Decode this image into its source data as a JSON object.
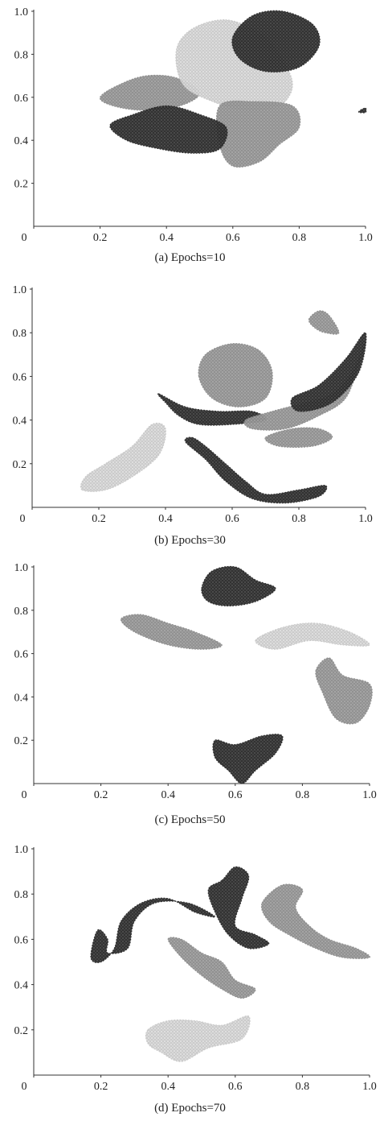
{
  "chart_data": [
    {
      "type": "scatter",
      "caption": "(a) Epochs=10",
      "xlim": [
        0,
        1.0
      ],
      "ylim": [
        0,
        1.0
      ],
      "xticks": [
        "0",
        "0.2",
        "0.4",
        "0.6",
        "0.8",
        "1.0"
      ],
      "yticks": [
        "0.2",
        "0.4",
        "0.6",
        "0.8",
        "1.0"
      ],
      "clusters": [
        {
          "shade": "medium",
          "points": [
            [
              0.2,
              0.6
            ],
            [
              0.26,
              0.66
            ],
            [
              0.34,
              0.7
            ],
            [
              0.43,
              0.69
            ],
            [
              0.5,
              0.62
            ],
            [
              0.44,
              0.56
            ],
            [
              0.33,
              0.54
            ],
            [
              0.24,
              0.56
            ]
          ]
        },
        {
          "shade": "light",
          "points": [
            [
              0.43,
              0.82
            ],
            [
              0.48,
              0.92
            ],
            [
              0.58,
              0.96
            ],
            [
              0.68,
              0.9
            ],
            [
              0.74,
              0.8
            ],
            [
              0.78,
              0.66
            ],
            [
              0.74,
              0.56
            ],
            [
              0.64,
              0.54
            ],
            [
              0.54,
              0.58
            ],
            [
              0.45,
              0.66
            ]
          ]
        },
        {
          "shade": "dark",
          "points": [
            [
              0.6,
              0.88
            ],
            [
              0.66,
              0.98
            ],
            [
              0.75,
              1.0
            ],
            [
              0.84,
              0.94
            ],
            [
              0.86,
              0.84
            ],
            [
              0.8,
              0.74
            ],
            [
              0.7,
              0.72
            ],
            [
              0.62,
              0.78
            ]
          ]
        },
        {
          "shade": "medium",
          "points": [
            [
              0.56,
              0.56
            ],
            [
              0.66,
              0.58
            ],
            [
              0.78,
              0.56
            ],
            [
              0.8,
              0.46
            ],
            [
              0.74,
              0.38
            ],
            [
              0.68,
              0.3
            ],
            [
              0.6,
              0.28
            ],
            [
              0.56,
              0.38
            ]
          ]
        },
        {
          "shade": "dark",
          "points": [
            [
              0.23,
              0.47
            ],
            [
              0.3,
              0.52
            ],
            [
              0.4,
              0.56
            ],
            [
              0.5,
              0.52
            ],
            [
              0.58,
              0.46
            ],
            [
              0.56,
              0.36
            ],
            [
              0.48,
              0.34
            ],
            [
              0.38,
              0.36
            ],
            [
              0.28,
              0.4
            ]
          ]
        },
        {
          "shade": "dark",
          "points": [
            [
              0.985,
              0.54
            ],
            [
              1.0,
              0.55
            ],
            [
              1.0,
              0.53
            ],
            [
              0.98,
              0.53
            ]
          ]
        }
      ]
    },
    {
      "type": "scatter",
      "caption": "(b) Epochs=30",
      "xlim": [
        0,
        1.0
      ],
      "ylim": [
        0,
        1.0
      ],
      "xticks": [
        "0",
        "0.2",
        "0.4",
        "0.6",
        "0.8",
        "1.0"
      ],
      "yticks": [
        "0.2",
        "0.4",
        "0.6",
        "0.8",
        "1.0"
      ],
      "clusters": [
        {
          "shade": "light",
          "points": [
            [
              0.15,
              0.08
            ],
            [
              0.16,
              0.14
            ],
            [
              0.22,
              0.2
            ],
            [
              0.3,
              0.28
            ],
            [
              0.36,
              0.38
            ],
            [
              0.4,
              0.36
            ],
            [
              0.38,
              0.24
            ],
            [
              0.3,
              0.14
            ],
            [
              0.22,
              0.08
            ]
          ]
        },
        {
          "shade": "medium",
          "points": [
            [
              0.5,
              0.6
            ],
            [
              0.52,
              0.7
            ],
            [
              0.6,
              0.75
            ],
            [
              0.68,
              0.72
            ],
            [
              0.72,
              0.62
            ],
            [
              0.7,
              0.5
            ],
            [
              0.62,
              0.46
            ],
            [
              0.54,
              0.5
            ]
          ]
        },
        {
          "shade": "dark",
          "points": [
            [
              0.38,
              0.52
            ],
            [
              0.46,
              0.46
            ],
            [
              0.56,
              0.44
            ],
            [
              0.66,
              0.44
            ],
            [
              0.7,
              0.4
            ],
            [
              0.6,
              0.38
            ],
            [
              0.5,
              0.38
            ],
            [
              0.44,
              0.42
            ],
            [
              0.4,
              0.48
            ]
          ]
        },
        {
          "shade": "dark",
          "points": [
            [
              0.48,
              0.32
            ],
            [
              0.52,
              0.28
            ],
            [
              0.58,
              0.2
            ],
            [
              0.64,
              0.12
            ],
            [
              0.7,
              0.06
            ],
            [
              0.8,
              0.08
            ],
            [
              0.88,
              0.1
            ],
            [
              0.86,
              0.05
            ],
            [
              0.76,
              0.02
            ],
            [
              0.66,
              0.04
            ],
            [
              0.58,
              0.12
            ],
            [
              0.52,
              0.22
            ],
            [
              0.46,
              0.3
            ]
          ]
        },
        {
          "shade": "medium",
          "points": [
            [
              0.64,
              0.4
            ],
            [
              0.72,
              0.44
            ],
            [
              0.82,
              0.48
            ],
            [
              0.9,
              0.52
            ],
            [
              0.96,
              0.62
            ],
            [
              1.0,
              0.76
            ],
            [
              0.98,
              0.66
            ],
            [
              0.94,
              0.5
            ],
            [
              0.86,
              0.42
            ],
            [
              0.76,
              0.36
            ],
            [
              0.66,
              0.36
            ]
          ]
        },
        {
          "shade": "dark",
          "points": [
            [
              0.78,
              0.5
            ],
            [
              0.86,
              0.56
            ],
            [
              0.94,
              0.68
            ],
            [
              1.0,
              0.8
            ],
            [
              0.98,
              0.62
            ],
            [
              0.9,
              0.48
            ],
            [
              0.8,
              0.44
            ]
          ]
        },
        {
          "shade": "medium",
          "points": [
            [
              0.7,
              0.32
            ],
            [
              0.78,
              0.36
            ],
            [
              0.86,
              0.36
            ],
            [
              0.9,
              0.32
            ],
            [
              0.84,
              0.28
            ],
            [
              0.74,
              0.28
            ]
          ]
        },
        {
          "shade": "medium",
          "points": [
            [
              0.83,
              0.86
            ],
            [
              0.86,
              0.9
            ],
            [
              0.89,
              0.88
            ],
            [
              0.92,
              0.8
            ],
            [
              0.88,
              0.8
            ],
            [
              0.85,
              0.82
            ]
          ]
        }
      ]
    },
    {
      "type": "scatter",
      "caption": "(c) Epochs=50",
      "xlim": [
        0,
        1.0
      ],
      "ylim": [
        0,
        1.0
      ],
      "xticks": [
        "0",
        "0.2",
        "0.4",
        "0.6",
        "0.8",
        "1.0"
      ],
      "yticks": [
        "0.2",
        "0.4",
        "0.6",
        "0.8",
        "1.0"
      ],
      "clusters": [
        {
          "shade": "dark",
          "points": [
            [
              0.5,
              0.9
            ],
            [
              0.53,
              0.98
            ],
            [
              0.6,
              1.0
            ],
            [
              0.66,
              0.94
            ],
            [
              0.72,
              0.9
            ],
            [
              0.66,
              0.84
            ],
            [
              0.58,
              0.82
            ],
            [
              0.52,
              0.84
            ]
          ]
        },
        {
          "shade": "medium",
          "points": [
            [
              0.26,
              0.76
            ],
            [
              0.32,
              0.78
            ],
            [
              0.4,
              0.74
            ],
            [
              0.48,
              0.7
            ],
            [
              0.56,
              0.64
            ],
            [
              0.5,
              0.62
            ],
            [
              0.4,
              0.64
            ],
            [
              0.3,
              0.7
            ]
          ]
        },
        {
          "shade": "light",
          "points": [
            [
              0.66,
              0.66
            ],
            [
              0.74,
              0.72
            ],
            [
              0.84,
              0.74
            ],
            [
              0.94,
              0.7
            ],
            [
              1.0,
              0.64
            ],
            [
              0.92,
              0.64
            ],
            [
              0.82,
              0.66
            ],
            [
              0.72,
              0.62
            ]
          ]
        },
        {
          "shade": "medium",
          "points": [
            [
              0.84,
              0.52
            ],
            [
              0.88,
              0.58
            ],
            [
              0.92,
              0.5
            ],
            [
              1.0,
              0.46
            ],
            [
              1.0,
              0.36
            ],
            [
              0.96,
              0.28
            ],
            [
              0.9,
              0.3
            ],
            [
              0.86,
              0.42
            ]
          ]
        },
        {
          "shade": "dark",
          "points": [
            [
              0.54,
              0.2
            ],
            [
              0.6,
              0.18
            ],
            [
              0.68,
              0.22
            ],
            [
              0.74,
              0.22
            ],
            [
              0.72,
              0.14
            ],
            [
              0.66,
              0.06
            ],
            [
              0.62,
              0.0
            ],
            [
              0.58,
              0.06
            ],
            [
              0.54,
              0.12
            ]
          ]
        }
      ]
    },
    {
      "type": "scatter",
      "caption": "(d) Epochs=70",
      "xlim": [
        0,
        1.0
      ],
      "ylim": [
        0,
        1.0
      ],
      "xticks": [
        "0",
        "0.2",
        "0.4",
        "0.6",
        "0.8",
        "1.0"
      ],
      "yticks": [
        "0.2",
        "0.4",
        "0.6",
        "0.8",
        "1.0"
      ],
      "clusters": [
        {
          "shade": "dark",
          "points": [
            [
              0.17,
              0.52
            ],
            [
              0.19,
              0.64
            ],
            [
              0.22,
              0.6
            ],
            [
              0.22,
              0.54
            ],
            [
              0.28,
              0.56
            ],
            [
              0.3,
              0.68
            ],
            [
              0.36,
              0.76
            ],
            [
              0.46,
              0.76
            ],
            [
              0.54,
              0.7
            ],
            [
              0.48,
              0.72
            ],
            [
              0.4,
              0.78
            ],
            [
              0.32,
              0.76
            ],
            [
              0.26,
              0.68
            ],
            [
              0.24,
              0.56
            ],
            [
              0.2,
              0.5
            ]
          ]
        },
        {
          "shade": "dark",
          "points": [
            [
              0.56,
              0.86
            ],
            [
              0.6,
              0.92
            ],
            [
              0.64,
              0.88
            ],
            [
              0.62,
              0.78
            ],
            [
              0.6,
              0.66
            ],
            [
              0.66,
              0.62
            ],
            [
              0.7,
              0.58
            ],
            [
              0.64,
              0.56
            ],
            [
              0.58,
              0.62
            ],
            [
              0.54,
              0.72
            ],
            [
              0.52,
              0.82
            ]
          ]
        },
        {
          "shade": "medium",
          "points": [
            [
              0.68,
              0.76
            ],
            [
              0.74,
              0.84
            ],
            [
              0.8,
              0.82
            ],
            [
              0.78,
              0.74
            ],
            [
              0.82,
              0.66
            ],
            [
              0.88,
              0.6
            ],
            [
              0.96,
              0.56
            ],
            [
              1.0,
              0.52
            ],
            [
              0.92,
              0.52
            ],
            [
              0.84,
              0.56
            ],
            [
              0.76,
              0.62
            ],
            [
              0.7,
              0.68
            ]
          ]
        },
        {
          "shade": "medium",
          "points": [
            [
              0.4,
              0.6
            ],
            [
              0.44,
              0.6
            ],
            [
              0.5,
              0.54
            ],
            [
              0.56,
              0.5
            ],
            [
              0.6,
              0.42
            ],
            [
              0.66,
              0.38
            ],
            [
              0.62,
              0.34
            ],
            [
              0.56,
              0.38
            ],
            [
              0.5,
              0.44
            ],
            [
              0.44,
              0.52
            ]
          ]
        },
        {
          "shade": "light",
          "points": [
            [
              0.34,
              0.2
            ],
            [
              0.4,
              0.24
            ],
            [
              0.48,
              0.24
            ],
            [
              0.56,
              0.22
            ],
            [
              0.64,
              0.26
            ],
            [
              0.62,
              0.16
            ],
            [
              0.52,
              0.12
            ],
            [
              0.44,
              0.06
            ],
            [
              0.38,
              0.1
            ],
            [
              0.34,
              0.14
            ]
          ]
        }
      ]
    }
  ]
}
